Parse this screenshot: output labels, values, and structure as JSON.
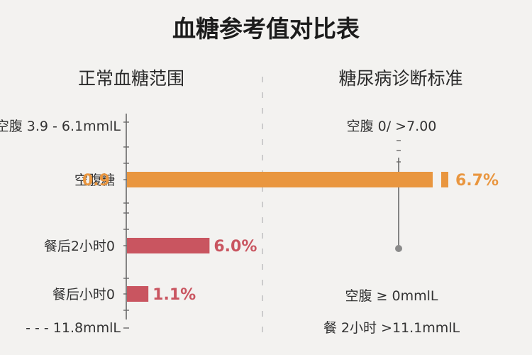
{
  "title": "血糖参考值对比表",
  "left_panel": {
    "heading": "正常血糖范围",
    "top_note": "空腹 3.9 - 6.1mmlL",
    "bottom_note": "- - - 11.8mmlL"
  },
  "right_panel": {
    "heading": "糖尿病诊断标准",
    "top_note": "空腹 0/ >7.00",
    "notes": [
      "空腹 ≥ 0mmlL",
      "餐 2小时 >11.1mmlL"
    ]
  },
  "colors": {
    "orange": "#e9963f",
    "red": "#c95560",
    "bg": "#f3f2f0"
  },
  "chart_data": {
    "type": "bar",
    "orientation": "horizontal",
    "title": "血糖参考值对比表",
    "categories": [
      "空腹糖",
      "餐后2小时0",
      "餐后小时0"
    ],
    "bars": [
      {
        "label": "空腹糖",
        "value_label": "0.9",
        "right_label": "6.7%",
        "color": "orange",
        "extent": 1.0
      },
      {
        "label": "餐后2小时0",
        "value_label": "6.0%",
        "color": "red",
        "extent": 0.27
      },
      {
        "label": "餐后小时0",
        "value_label": "1.1%",
        "color": "red",
        "extent": 0.07
      }
    ],
    "grid": false,
    "legend": "none"
  }
}
